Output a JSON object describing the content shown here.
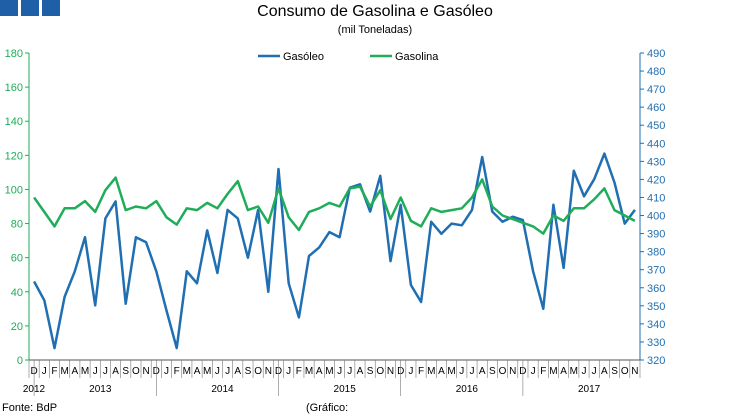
{
  "header": {
    "title": "Consumo de Gasolina e Gasóleo",
    "subtitle": "(mil Toneladas)"
  },
  "footer": {
    "source": "Fonte: BdP",
    "note": "(Gráfico:"
  },
  "colors": {
    "brand": "#1f5fa8",
    "gasoleo": "#1f6fb2",
    "gasolina": "#20ad5a",
    "axis_left": "#20ad5a",
    "axis_right": "#1f6fb2"
  },
  "chart_data": {
    "type": "line",
    "title": "Consumo de Gasolina e Gasóleo",
    "subtitle": "(mil Toneladas)",
    "legend_position": "top-center",
    "grid": false,
    "month_labels": [
      "D",
      "J",
      "F",
      "M",
      "A",
      "M",
      "J",
      "J",
      "A",
      "S",
      "O",
      "N",
      "D",
      "J",
      "F",
      "M",
      "A",
      "M",
      "J",
      "J",
      "A",
      "S",
      "O",
      "N",
      "D",
      "J",
      "F",
      "M",
      "A",
      "M",
      "J",
      "J",
      "A",
      "S",
      "O",
      "N",
      "D",
      "J",
      "F",
      "M",
      "A",
      "M",
      "J",
      "J",
      "A",
      "S",
      "O",
      "N",
      "D",
      "J",
      "F",
      "M",
      "A",
      "M",
      "J",
      "J",
      "A",
      "S",
      "O",
      "N"
    ],
    "year_labels": [
      {
        "label": "2012",
        "index": 0
      },
      {
        "label": "2013",
        "index": 6.5
      },
      {
        "label": "2014",
        "index": 18.5
      },
      {
        "label": "2015",
        "index": 30.5
      },
      {
        "label": "2016",
        "index": 42.5
      },
      {
        "label": "2017",
        "index": 54.5
      }
    ],
    "year_boundaries": [
      0.5,
      12.5,
      24.5,
      36.5,
      48.5
    ],
    "y_left": {
      "min": 0,
      "max": 180,
      "ticks": [
        0,
        20,
        40,
        60,
        80,
        100,
        120,
        140,
        160,
        180
      ]
    },
    "y_right": {
      "min": 320,
      "max": 490,
      "ticks": [
        320,
        330,
        340,
        350,
        360,
        370,
        380,
        390,
        400,
        410,
        420,
        430,
        440,
        450,
        460,
        470,
        480,
        490
      ]
    },
    "series": [
      {
        "name": "Gasóleo",
        "axis": "left",
        "color": "#1f6fb2",
        "values": [
          46,
          35,
          7,
          37,
          52,
          72,
          32,
          83,
          93,
          33,
          72,
          69,
          52,
          29,
          7,
          52,
          45,
          76,
          51,
          88,
          83,
          60,
          88,
          40,
          112,
          45,
          25,
          61,
          66,
          75,
          72,
          101,
          103,
          87,
          108,
          58,
          91,
          44,
          34,
          81,
          74,
          80,
          79,
          88,
          119,
          87,
          81,
          84,
          82,
          52,
          30,
          91,
          54,
          111,
          96,
          106,
          121,
          104,
          80,
          88
        ]
      },
      {
        "name": "Gasolina",
        "axis": "right",
        "color": "#20ad5a",
        "values": [
          410,
          402,
          394,
          404,
          404,
          408,
          402,
          414,
          421,
          403,
          405,
          404,
          408,
          399,
          395,
          404,
          403,
          407,
          404,
          412,
          419,
          403,
          405,
          396,
          415,
          399,
          392,
          402,
          404,
          407,
          405,
          415,
          416,
          405,
          414,
          398,
          410,
          397,
          394,
          404,
          402,
          403,
          404,
          410,
          420,
          405,
          400,
          398,
          396,
          394,
          390,
          400,
          397,
          404,
          404,
          409,
          415,
          403,
          400,
          397
        ]
      }
    ]
  }
}
